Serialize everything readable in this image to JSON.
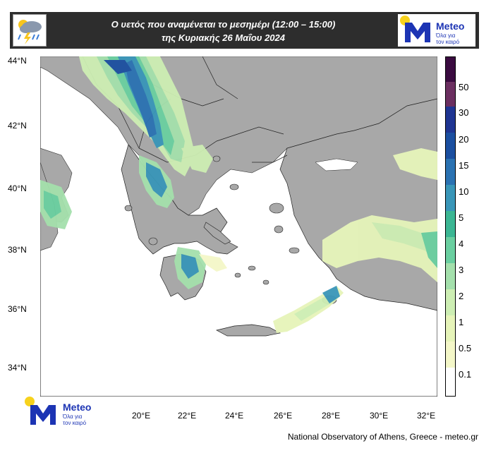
{
  "header": {
    "title_line1": "Ο υετός που αναμένεται το μεσημέρι (12:00 – 15:00)",
    "title_line2": "της Κυριακής 26 Μαΐου 2024"
  },
  "logo": {
    "brand": "Meteo",
    "tagline_1": "Όλα για",
    "tagline_2": "τον καιρό"
  },
  "map": {
    "lat_labels": [
      "44°N",
      "42°N",
      "40°N",
      "38°N",
      "36°N",
      "34°N"
    ],
    "lon_labels": [
      "20°E",
      "22°E",
      "24°E",
      "26°E",
      "28°E",
      "30°E",
      "32°E"
    ],
    "colors": {
      "land": "#a8a8a8",
      "sea": "#ffffff",
      "border": "#000000"
    }
  },
  "colorbar": {
    "labels": [
      "50",
      "30",
      "20",
      "15",
      "10",
      "5",
      "4",
      "3",
      "2",
      "1",
      "0.5",
      "0.1"
    ],
    "colors": [
      "#ffffff",
      "#f4f7c8",
      "#e6f4b9",
      "#cdeeb3",
      "#a4e0ac",
      "#6acfa0",
      "#3bb693",
      "#3996b8",
      "#2a72b2",
      "#1b4fa0",
      "#1f3592",
      "#6b2f60",
      "#3a0b40"
    ]
  },
  "credit": "National Observatory of Athens, Greece - meteo.gr"
}
